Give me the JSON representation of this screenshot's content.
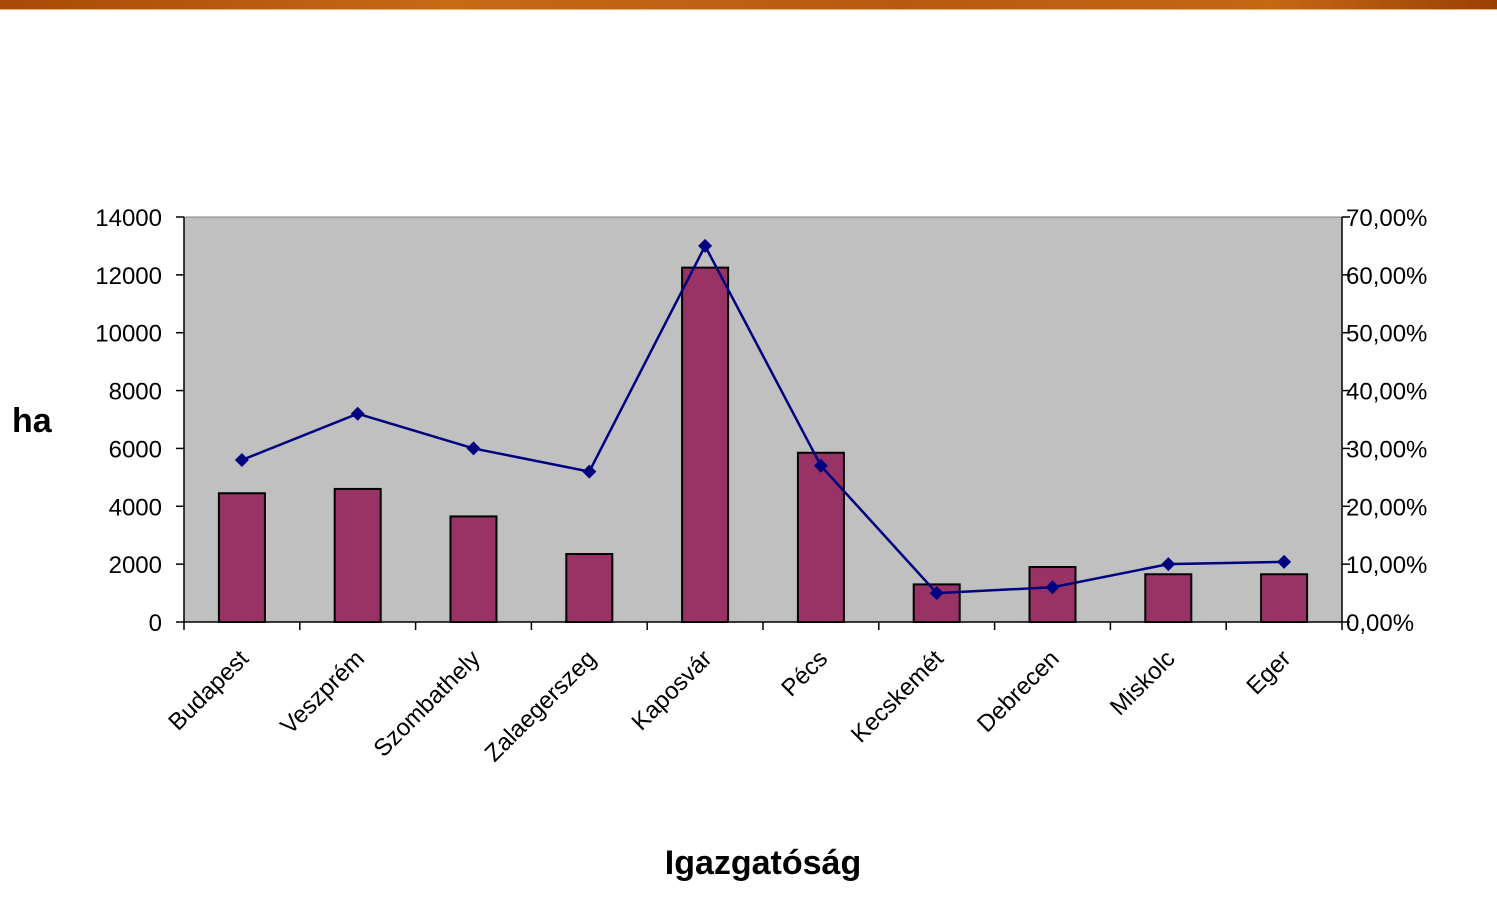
{
  "chart_data": {
    "type": "bar",
    "categories": [
      "Budapest",
      "Veszprém",
      "Szombathely",
      "Zalaegerszeg",
      "Kaposvár",
      "Pécs",
      "Kecskemét",
      "Debrecen",
      "Miskolc",
      "Eger"
    ],
    "series": [
      {
        "type": "bar",
        "axis": "left",
        "values": [
          4450,
          4600,
          3650,
          2350,
          12250,
          5850,
          1300,
          1900,
          1650,
          1650
        ],
        "color": "#993366"
      },
      {
        "type": "line",
        "axis": "right",
        "values": [
          0.28,
          0.36,
          0.3,
          0.26,
          0.65,
          0.27,
          0.05,
          0.06,
          0.1,
          0.104
        ],
        "color": "#000080"
      }
    ],
    "xlabel": "Igazgatóság",
    "ylabel": "ha",
    "ylim": [
      0,
      14000
    ],
    "yticks": [
      "0",
      "2000",
      "4000",
      "6000",
      "8000",
      "10000",
      "12000",
      "14000"
    ],
    "y2lim": [
      0,
      0.7
    ],
    "y2ticks": [
      "0,00%",
      "10,00%",
      "20,00%",
      "30,00%",
      "40,00%",
      "50,00%",
      "60,00%",
      "70,00%"
    ],
    "plot_background": "#c0c0c0",
    "grid": false,
    "legend": "none"
  }
}
